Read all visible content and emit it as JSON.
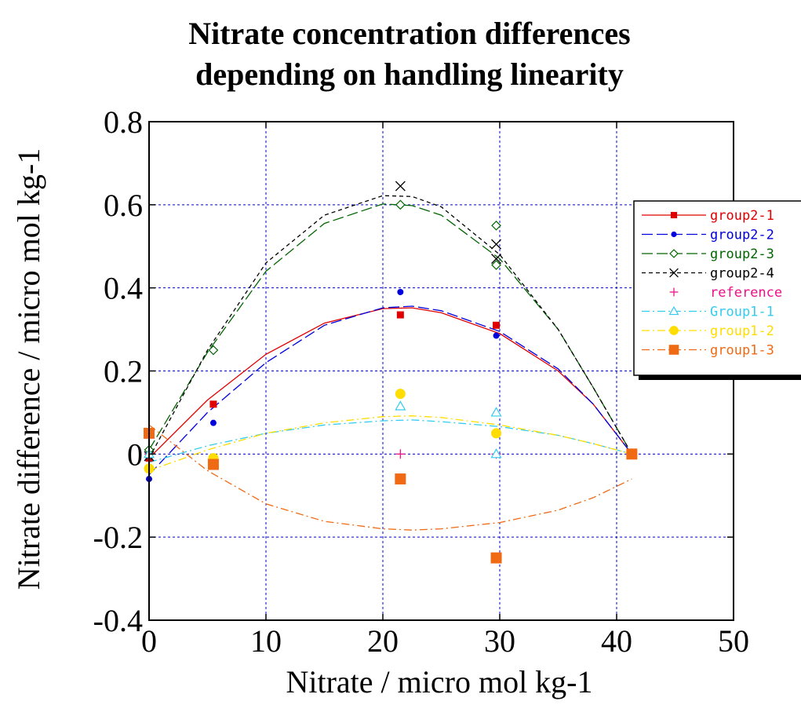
{
  "chart_data": {
    "type": "scatter",
    "title_lines": [
      "Nitrate concentration differences",
      "depending on handling linearity"
    ],
    "xlabel": "Nitrate / micro mol kg-1",
    "ylabel": "Nitrate difference / micro mol kg-1",
    "xlim": [
      0,
      50
    ],
    "ylim": [
      -0.4,
      0.8
    ],
    "xticks": [
      0,
      10,
      20,
      30,
      40,
      50
    ],
    "yticks": [
      -0.4,
      -0.2,
      0,
      0.2,
      0.4,
      0.6,
      0.8
    ],
    "ytick_labels": [
      "-0.4",
      "-0.2",
      "0",
      "0.2",
      "0.4",
      "0.6",
      "0.8"
    ],
    "grid": true,
    "legend_position": "right",
    "series": [
      {
        "name": "group2-1",
        "color": "#e00000",
        "marker": "square-small",
        "dash": "solid",
        "points": [
          [
            0,
            -0.01
          ],
          [
            5.5,
            0.12
          ],
          [
            21.5,
            0.335
          ],
          [
            29.7,
            0.31
          ],
          [
            41.3,
            0
          ]
        ],
        "curve": [
          [
            0,
            -0.01
          ],
          [
            5,
            0.13
          ],
          [
            10,
            0.24
          ],
          [
            15,
            0.315
          ],
          [
            20,
            0.35
          ],
          [
            22.5,
            0.352
          ],
          [
            25,
            0.34
          ],
          [
            30,
            0.29
          ],
          [
            35,
            0.2
          ],
          [
            38,
            0.12
          ],
          [
            41.3,
            0
          ]
        ]
      },
      {
        "name": "group2-2",
        "color": "#0000dd",
        "marker": "circle-small",
        "dash": "long-dash",
        "points": [
          [
            0,
            -0.06
          ],
          [
            5.5,
            0.075
          ],
          [
            21.5,
            0.39
          ],
          [
            29.7,
            0.285
          ],
          [
            41.3,
            0
          ]
        ],
        "curve": [
          [
            0,
            -0.05
          ],
          [
            5,
            0.1
          ],
          [
            10,
            0.22
          ],
          [
            15,
            0.31
          ],
          [
            20,
            0.352
          ],
          [
            22.5,
            0.356
          ],
          [
            25,
            0.345
          ],
          [
            30,
            0.295
          ],
          [
            35,
            0.205
          ],
          [
            38,
            0.12
          ],
          [
            41.3,
            0
          ]
        ]
      },
      {
        "name": "group2-3",
        "color": "#006600",
        "marker": "diamond-open",
        "dash": "long-dash",
        "points": [
          [
            0,
            0.01
          ],
          [
            5.5,
            0.25
          ],
          [
            21.5,
            0.6
          ],
          [
            29.7,
            0.55
          ],
          [
            29.7,
            0.455
          ],
          [
            41.3,
            0
          ]
        ],
        "curve": [
          [
            0,
            0.01
          ],
          [
            5,
            0.245
          ],
          [
            10,
            0.44
          ],
          [
            15,
            0.555
          ],
          [
            20,
            0.602
          ],
          [
            22.5,
            0.598
          ],
          [
            25,
            0.575
          ],
          [
            30,
            0.47
          ],
          [
            35,
            0.3
          ],
          [
            38,
            0.16
          ],
          [
            41.3,
            0
          ]
        ]
      },
      {
        "name": "group2-4",
        "color": "#000000",
        "marker": "x",
        "dash": "short-dash",
        "points": [
          [
            0,
            -0.005
          ],
          [
            21.5,
            0.645
          ],
          [
            29.7,
            0.505
          ],
          [
            29.7,
            0.47
          ],
          [
            41.3,
            0
          ]
        ],
        "curve": [
          [
            0,
            -0.01
          ],
          [
            5,
            0.25
          ],
          [
            10,
            0.46
          ],
          [
            15,
            0.575
          ],
          [
            20,
            0.622
          ],
          [
            22.5,
            0.62
          ],
          [
            25,
            0.595
          ],
          [
            30,
            0.48
          ],
          [
            35,
            0.3
          ],
          [
            38,
            0.16
          ],
          [
            41.3,
            0
          ]
        ]
      },
      {
        "name": "reference",
        "color": "#ee1188",
        "marker": "plus",
        "dash": "none",
        "points": [
          [
            0,
            0
          ],
          [
            21.5,
            0
          ],
          [
            29.7,
            0
          ],
          [
            41.3,
            0
          ]
        ],
        "curve": []
      },
      {
        "name": "Group1-1",
        "color": "#33ccee",
        "marker": "triangle-open",
        "dash": "dash-dot",
        "points": [
          [
            0,
            0
          ],
          [
            5.5,
            -0.02
          ],
          [
            21.5,
            0.115
          ],
          [
            29.7,
            0.1
          ],
          [
            29.7,
            0
          ],
          [
            41.3,
            0
          ]
        ],
        "curve": [
          [
            0,
            -0.02
          ],
          [
            5,
            0.02
          ],
          [
            10,
            0.05
          ],
          [
            15,
            0.07
          ],
          [
            20,
            0.08
          ],
          [
            22.5,
            0.082
          ],
          [
            25,
            0.078
          ],
          [
            30,
            0.066
          ],
          [
            35,
            0.045
          ],
          [
            38,
            0.025
          ],
          [
            41.3,
            0
          ]
        ]
      },
      {
        "name": "group1-2",
        "color": "#ffdd00",
        "marker": "circle-large",
        "dash": "dash-dot",
        "points": [
          [
            0,
            -0.035
          ],
          [
            5.5,
            -0.01
          ],
          [
            21.5,
            0.145
          ],
          [
            29.7,
            0.05
          ],
          [
            41.3,
            0
          ]
        ],
        "curve": [
          [
            0,
            -0.04
          ],
          [
            5,
            0.01
          ],
          [
            10,
            0.05
          ],
          [
            15,
            0.075
          ],
          [
            20,
            0.09
          ],
          [
            22.5,
            0.092
          ],
          [
            25,
            0.088
          ],
          [
            30,
            0.07
          ],
          [
            35,
            0.045
          ],
          [
            38,
            0.025
          ],
          [
            41.3,
            0
          ]
        ]
      },
      {
        "name": "group1-3",
        "color": "#f06a14",
        "marker": "square-large",
        "dash": "dash-dot",
        "points": [
          [
            0,
            0.05
          ],
          [
            5.5,
            -0.025
          ],
          [
            21.5,
            -0.06
          ],
          [
            29.7,
            -0.25
          ],
          [
            41.3,
            0
          ]
        ],
        "curve": [
          [
            0,
            0.07
          ],
          [
            5,
            -0.04
          ],
          [
            10,
            -0.12
          ],
          [
            15,
            -0.162
          ],
          [
            20,
            -0.18
          ],
          [
            22.5,
            -0.183
          ],
          [
            25,
            -0.18
          ],
          [
            30,
            -0.165
          ],
          [
            35,
            -0.135
          ],
          [
            38,
            -0.105
          ],
          [
            41.3,
            -0.06
          ]
        ]
      }
    ]
  }
}
